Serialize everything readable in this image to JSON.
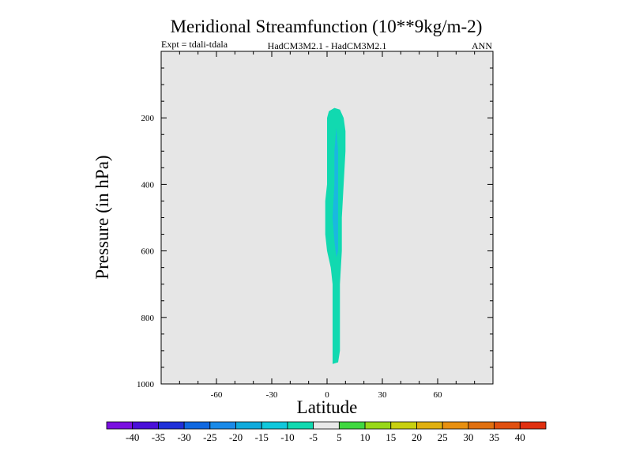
{
  "chart_data": {
    "type": "filled-contour",
    "title": "Meridional Streamfunction (10**9kg/m-2)",
    "subtitle_left": "Expt = tdali-tdala",
    "subtitle_center": "HadCM3M2.1 - HadCM3M2.1",
    "subtitle_right": "ANN",
    "xlabel": "Latitude",
    "ylabel": "Pressure (in hPa)",
    "xlim": [
      -90,
      90
    ],
    "ylim": [
      1000,
      0
    ],
    "xticks": [
      -60,
      -30,
      0,
      30,
      60
    ],
    "yticks": [
      200,
      400,
      600,
      800,
      1000
    ],
    "xtick_labels": [
      "-60",
      "-30",
      "0",
      "30",
      "60"
    ],
    "ytick_labels": [
      "200",
      "400",
      "600",
      "800",
      "1000"
    ],
    "plot_background": "#e6e6e6",
    "contour_regions": [
      {
        "level_band": "-10 to -5",
        "color": "#11d9b0",
        "boundary": [
          [
            4,
            170
          ],
          [
            7,
            175
          ],
          [
            9,
            200
          ],
          [
            10,
            240
          ],
          [
            10,
            300
          ],
          [
            9,
            400
          ],
          [
            8,
            500
          ],
          [
            8,
            600
          ],
          [
            7,
            700
          ],
          [
            7,
            800
          ],
          [
            7,
            900
          ],
          [
            6,
            935
          ],
          [
            3,
            940
          ],
          [
            3,
            900
          ],
          [
            3,
            800
          ],
          [
            3,
            700
          ],
          [
            2,
            650
          ],
          [
            0,
            600
          ],
          [
            -1,
            550
          ],
          [
            -1,
            500
          ],
          [
            -1,
            450
          ],
          [
            0,
            400
          ],
          [
            0,
            300
          ],
          [
            0,
            200
          ],
          [
            1,
            180
          ]
        ]
      },
      {
        "level_band": "-15 to -10",
        "color": "#1ab8e0",
        "boundary": [
          [
            5,
            230
          ],
          [
            6,
            300
          ],
          [
            6,
            400
          ],
          [
            6,
            500
          ],
          [
            6,
            600
          ],
          [
            5,
            620
          ],
          [
            4,
            570
          ],
          [
            3,
            500
          ],
          [
            4,
            400
          ],
          [
            4,
            300
          ]
        ]
      }
    ],
    "colorbar": {
      "colors": [
        "#7a10e0",
        "#4a10d8",
        "#2030d8",
        "#1068e0",
        "#1a8ae8",
        "#10aadc",
        "#10c8dc",
        "#11d9b0",
        "#e8e8e8",
        "#40d840",
        "#98d818",
        "#c8d010",
        "#e0b010",
        "#e89010",
        "#e07010",
        "#e05010",
        "#e03010"
      ],
      "labels": [
        "-40",
        "-35",
        "-30",
        "-25",
        "-20",
        "-15",
        "-10",
        "-5",
        "5",
        "10",
        "15",
        "20",
        "25",
        "30",
        "35",
        "40"
      ]
    }
  }
}
